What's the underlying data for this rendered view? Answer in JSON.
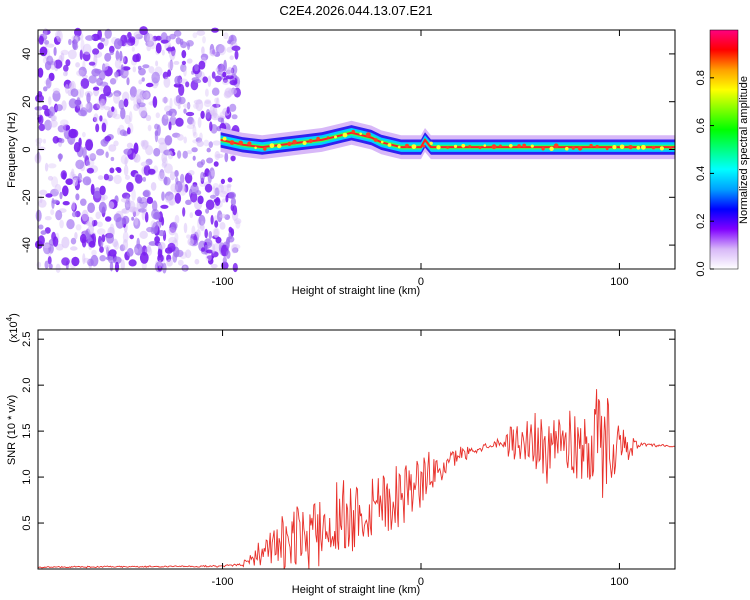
{
  "page_title": "C2E4.2026.044.13.07.E21",
  "chart_data": [
    {
      "type": "heatmap",
      "title": "C2E4.2026.044.13.07.E21",
      "xlabel": "Height of straight line (km)",
      "ylabel": "Frequency (Hz)",
      "xlim": [
        -193,
        128
      ],
      "ylim": [
        -50,
        50
      ],
      "x_ticks": [
        -100,
        0,
        100
      ],
      "x_tick_labels": [
        "-100",
        "0",
        "100"
      ],
      "y_ticks": [
        -40,
        -20,
        0,
        20,
        40
      ],
      "y_tick_labels": [
        "-40",
        "-20",
        "0",
        "20",
        "40"
      ],
      "noise_region_x": [
        -193,
        -100
      ],
      "ridge": {
        "x": [
          -101,
          -90,
          -80,
          -70,
          -60,
          -50,
          -40,
          -35,
          -30,
          -25,
          -20,
          -15,
          -10,
          0,
          2,
          5,
          10,
          15,
          20,
          40,
          60,
          80,
          90,
          100,
          128
        ],
        "y": [
          4,
          2,
          1,
          2,
          3,
          4,
          6,
          7,
          6,
          5,
          3,
          2,
          1,
          1,
          4,
          1,
          1,
          1,
          1,
          1,
          1,
          1,
          1,
          1,
          1
        ]
      },
      "colorbar": {
        "label": "Normalized spectral amplitude",
        "range": [
          0,
          1
        ],
        "ticks": [
          0.0,
          0.2,
          0.4,
          0.6,
          0.8
        ],
        "tick_labels": [
          "0.0",
          "0.2",
          "0.4",
          "0.6",
          "0.8"
        ],
        "colors": [
          "#ffffff",
          "#d8b8f8",
          "#8000ff",
          "#0000ff",
          "#00a0ff",
          "#00ffff",
          "#00ff80",
          "#00ff00",
          "#80ff00",
          "#ffff00",
          "#ffa000",
          "#ff0000",
          "#ff0080"
        ]
      }
    },
    {
      "type": "line",
      "title": "",
      "xlabel": "Height of straight line (km)",
      "ylabel": "SNR (10 * v/v)",
      "y_multiplier_label": "(x10",
      "y_multiplier_exp": "4",
      "y_multiplier_close": ")",
      "xlim": [
        -193,
        128
      ],
      "ylim": [
        0,
        2.6
      ],
      "x_ticks": [
        -100,
        0,
        100
      ],
      "x_tick_labels": [
        "-100",
        "0",
        "100"
      ],
      "y_ticks": [
        0.5,
        1.0,
        1.5,
        2.0,
        2.5
      ],
      "y_tick_labels": [
        "0.5",
        "1.0",
        "1.5",
        "2.0",
        "2.5"
      ],
      "line_color": "#e8302a",
      "envelope": {
        "x": [
          -193,
          -100,
          -92,
          -85,
          -80,
          -70,
          -60,
          -50,
          -40,
          -30,
          -20,
          -10,
          0,
          10,
          20,
          30,
          40,
          50,
          60,
          70,
          80,
          90,
          95,
          100,
          110,
          128
        ],
        "baseline": [
          0.02,
          0.03,
          0.05,
          0.12,
          0.2,
          0.25,
          0.35,
          0.45,
          0.55,
          0.65,
          0.75,
          0.85,
          0.95,
          1.1,
          1.25,
          1.32,
          1.38,
          1.38,
          1.38,
          1.36,
          1.36,
          1.36,
          1.35,
          1.35,
          1.35,
          1.33
        ],
        "amplitude": [
          0.01,
          0.01,
          0.03,
          0.1,
          0.2,
          0.35,
          0.45,
          0.55,
          0.55,
          0.6,
          0.55,
          0.45,
          0.35,
          0.2,
          0.1,
          0.05,
          0.06,
          0.35,
          0.45,
          0.5,
          0.55,
          0.8,
          0.6,
          0.3,
          0.03,
          0.02
        ]
      }
    }
  ]
}
